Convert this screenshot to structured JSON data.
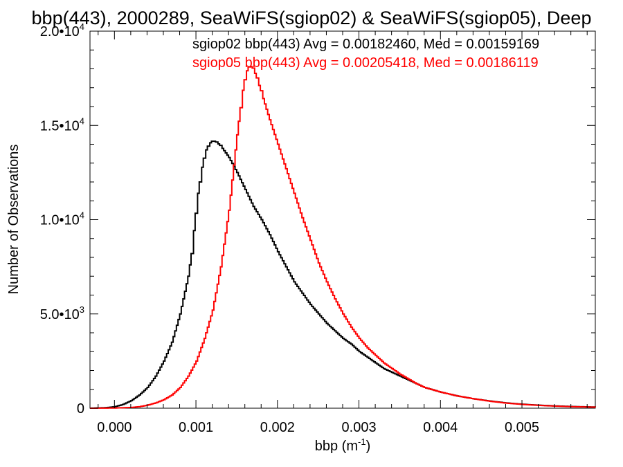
{
  "chart_data": {
    "type": "line",
    "title": "bbp(443), 2000289, SeaWiFS(sgiop02) & SeaWiFS(sgiop05), Deep",
    "xlabel": "bbp (m",
    "xlabel_sup": "-1",
    "xlabel_close": ")",
    "ylabel": "Number of Observations",
    "xlim": [
      -0.0003,
      0.0059
    ],
    "ylim": [
      0,
      20000
    ],
    "x_ticks": [
      {
        "value": 0.0,
        "label": "0.000"
      },
      {
        "value": 0.001,
        "label": "0.001"
      },
      {
        "value": 0.002,
        "label": "0.002"
      },
      {
        "value": 0.003,
        "label": "0.003"
      },
      {
        "value": 0.004,
        "label": "0.004"
      },
      {
        "value": 0.005,
        "label": "0.005"
      }
    ],
    "y_ticks": [
      {
        "value": 0,
        "base": "0",
        "sup": ""
      },
      {
        "value": 5000,
        "base": "5.0•10",
        "sup": "3"
      },
      {
        "value": 10000,
        "base": "1.0•10",
        "sup": "4"
      },
      {
        "value": 15000,
        "base": "1.5•10",
        "sup": "4"
      },
      {
        "value": 20000,
        "base": "2.0•10",
        "sup": "4"
      }
    ],
    "grid": false,
    "step": true,
    "annotations": [
      {
        "text": "sgiop02 bbp(443) Avg = 0.00182460, Med = 0.00159169",
        "color": "#000000"
      },
      {
        "text": "sgiop05 bbp(443) Avg = 0.00205418, Med = 0.00186119",
        "color": "#ff0000"
      }
    ],
    "series": [
      {
        "color": "#000000",
        "points": [
          [
            -0.0003,
            0
          ],
          [
            -0.0001,
            30
          ],
          [
            0.0,
            80
          ],
          [
            0.0001,
            200
          ],
          [
            0.0002,
            400
          ],
          [
            0.0003,
            700
          ],
          [
            0.0004,
            1100
          ],
          [
            0.0005,
            1700
          ],
          [
            0.0006,
            2500
          ],
          [
            0.0007,
            3500
          ],
          [
            0.0008,
            5000
          ],
          [
            0.0009,
            7000
          ],
          [
            0.00095,
            8500
          ],
          [
            0.001,
            10800
          ],
          [
            0.00105,
            12300
          ],
          [
            0.0011,
            13500
          ],
          [
            0.00115,
            14000
          ],
          [
            0.0012,
            14200
          ],
          [
            0.00125,
            14100
          ],
          [
            0.0013,
            13900
          ],
          [
            0.0014,
            13300
          ],
          [
            0.0015,
            12500
          ],
          [
            0.0016,
            11600
          ],
          [
            0.0017,
            10700
          ],
          [
            0.0018,
            10000
          ],
          [
            0.0019,
            9200
          ],
          [
            0.002,
            8300
          ],
          [
            0.0021,
            7500
          ],
          [
            0.0022,
            6700
          ],
          [
            0.0023,
            6100
          ],
          [
            0.0024,
            5500
          ],
          [
            0.0025,
            5000
          ],
          [
            0.0026,
            4500
          ],
          [
            0.0027,
            4100
          ],
          [
            0.0028,
            3700
          ],
          [
            0.0029,
            3400
          ],
          [
            0.003,
            3000
          ],
          [
            0.0031,
            2700
          ],
          [
            0.0032,
            2400
          ],
          [
            0.0033,
            2100
          ],
          [
            0.0034,
            1900
          ],
          [
            0.0035,
            1700
          ],
          [
            0.0036,
            1500
          ],
          [
            0.0037,
            1300
          ],
          [
            0.0038,
            1100
          ],
          [
            0.004,
            850
          ],
          [
            0.0042,
            650
          ],
          [
            0.0044,
            500
          ],
          [
            0.0046,
            380
          ],
          [
            0.0048,
            280
          ],
          [
            0.005,
            210
          ],
          [
            0.0052,
            160
          ],
          [
            0.0054,
            120
          ],
          [
            0.0056,
            90
          ],
          [
            0.0059,
            60
          ]
        ]
      },
      {
        "color": "#ff0000",
        "points": [
          [
            -0.0003,
            0
          ],
          [
            0.0,
            10
          ],
          [
            0.0002,
            40
          ],
          [
            0.0003,
            80
          ],
          [
            0.0004,
            160
          ],
          [
            0.0005,
            280
          ],
          [
            0.0006,
            450
          ],
          [
            0.0007,
            700
          ],
          [
            0.0008,
            1100
          ],
          [
            0.0009,
            1700
          ],
          [
            0.001,
            2500
          ],
          [
            0.0011,
            3700
          ],
          [
            0.0012,
            5200
          ],
          [
            0.0013,
            7500
          ],
          [
            0.0014,
            10500
          ],
          [
            0.0015,
            14500
          ],
          [
            0.00155,
            16300
          ],
          [
            0.0016,
            17700
          ],
          [
            0.00165,
            18200
          ],
          [
            0.0017,
            18000
          ],
          [
            0.00175,
            17400
          ],
          [
            0.0018,
            16700
          ],
          [
            0.0019,
            15300
          ],
          [
            0.002,
            14000
          ],
          [
            0.0021,
            12700
          ],
          [
            0.0022,
            11400
          ],
          [
            0.0023,
            10100
          ],
          [
            0.0024,
            8900
          ],
          [
            0.0025,
            7700
          ],
          [
            0.0026,
            6700
          ],
          [
            0.0027,
            5800
          ],
          [
            0.0028,
            5000
          ],
          [
            0.0029,
            4300
          ],
          [
            0.003,
            3700
          ],
          [
            0.0031,
            3200
          ],
          [
            0.0032,
            2800
          ],
          [
            0.0033,
            2400
          ],
          [
            0.0034,
            2100
          ],
          [
            0.0035,
            1800
          ],
          [
            0.0036,
            1550
          ],
          [
            0.0037,
            1300
          ],
          [
            0.0038,
            1100
          ],
          [
            0.004,
            850
          ],
          [
            0.0042,
            650
          ],
          [
            0.0044,
            500
          ],
          [
            0.0046,
            370
          ],
          [
            0.0048,
            270
          ],
          [
            0.005,
            200
          ],
          [
            0.0052,
            150
          ],
          [
            0.0054,
            110
          ],
          [
            0.0056,
            80
          ],
          [
            0.0059,
            55
          ]
        ]
      }
    ]
  }
}
